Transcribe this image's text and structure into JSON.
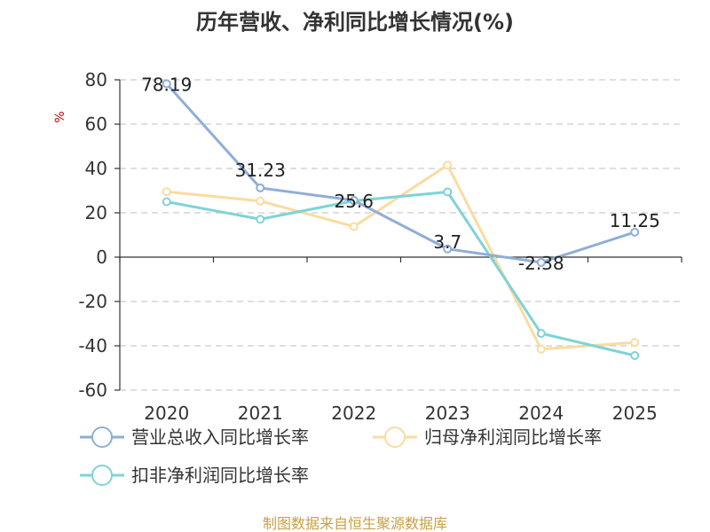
{
  "chart_data": {
    "type": "line",
    "title": "历年营收、净利同比增长情况(%)",
    "ylabel": "%",
    "xlabel": "",
    "categories": [
      "2020",
      "2021",
      "2022",
      "2023",
      "2024",
      "2025"
    ],
    "ylim": [
      -60,
      80
    ],
    "yticks": [
      80,
      60,
      40,
      20,
      0,
      -20,
      -40,
      -60
    ],
    "grid": true,
    "legend_position": "bottom",
    "series": [
      {
        "name": "营业总收入同比增长率",
        "color": "#8eaed8",
        "values": [
          78.19,
          31.23,
          25.6,
          3.7,
          -2.38,
          11.25
        ],
        "labels": [
          "78.19",
          "31.23",
          "25.6",
          "3.7",
          "-2.38",
          "11.25"
        ]
      },
      {
        "name": "归母净利润同比增长率",
        "color": "#f9dca0",
        "values": [
          29.5,
          25.3,
          13.8,
          41.5,
          -41.5,
          -38.5
        ],
        "labels": []
      },
      {
        "name": "扣非净利润同比增长率",
        "color": "#7fd3d8",
        "values": [
          25.0,
          17.1,
          25.4,
          29.4,
          -34.4,
          -44.4
        ],
        "labels": []
      }
    ]
  },
  "source_text": "制图数据来自恒生聚源数据库"
}
